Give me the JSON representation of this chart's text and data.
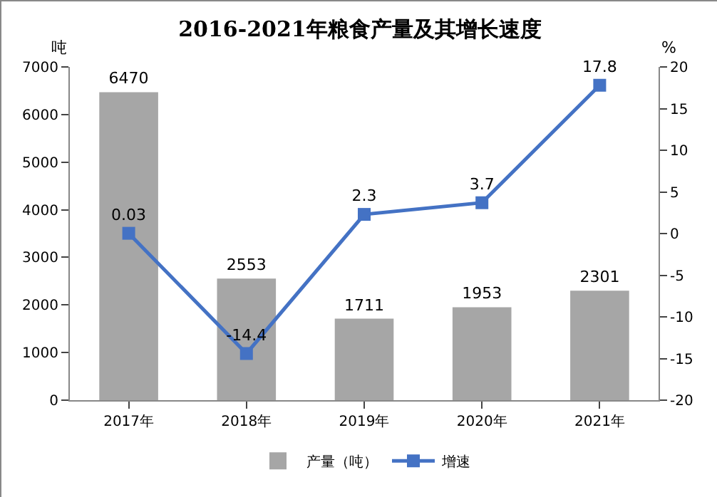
{
  "chart_data": {
    "type": "bar",
    "title": "2016-2021年粮食产量及其增长速度",
    "ylabel": "吨",
    "y2label": "%",
    "categories": [
      "2017年",
      "2018年",
      "2019年",
      "2020年",
      "2021年"
    ],
    "series": [
      {
        "name": "产量（吨）",
        "color": "#a6a6a6",
        "values": [
          6470,
          2553,
          1711,
          1953,
          2301
        ]
      },
      {
        "name": "增速",
        "type": "line",
        "axis": "y2",
        "color": "#4472c4",
        "values": [
          0.03,
          -14.4,
          2.3,
          3.7,
          17.8
        ]
      }
    ],
    "ylim": [
      0,
      7000
    ],
    "yticks": [
      0,
      1000,
      2000,
      3000,
      4000,
      5000,
      6000,
      7000
    ],
    "y2lim": [
      -20,
      20
    ],
    "y2ticks": [
      -20,
      -15,
      -10,
      -5,
      0,
      5,
      10,
      15,
      20
    ],
    "data_labels": true,
    "legend": "bottom",
    "marker": "square",
    "grid": false
  }
}
